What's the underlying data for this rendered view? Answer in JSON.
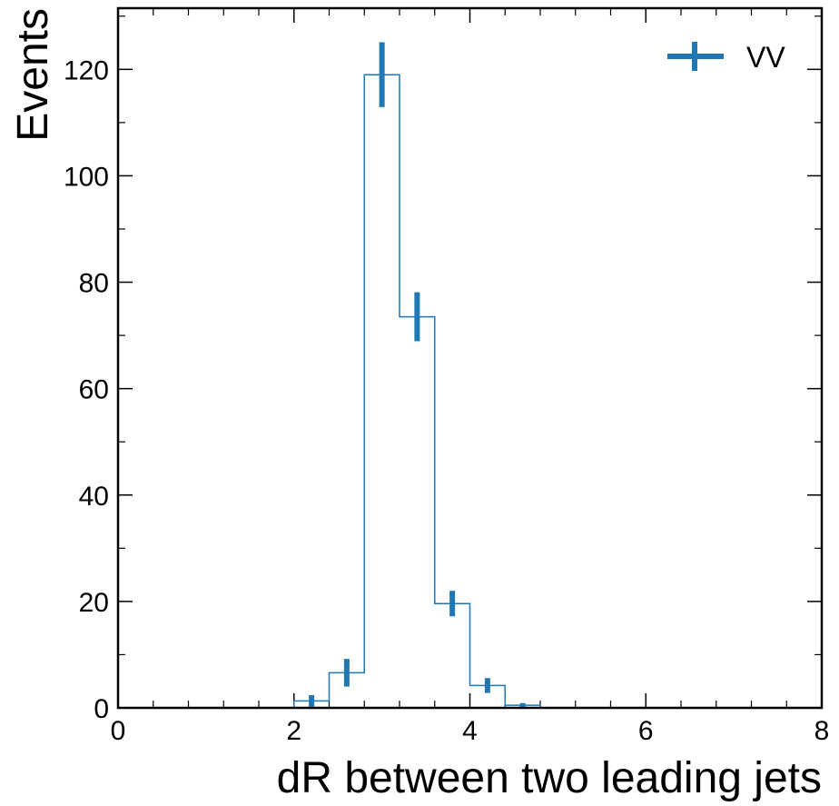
{
  "chart_data": {
    "type": "histogram",
    "xlabel": "dR between two leading jets",
    "ylabel": "Events",
    "xlim": [
      0,
      8
    ],
    "ylim": [
      0,
      131.5
    ],
    "xticks": [
      0,
      2,
      4,
      6,
      8
    ],
    "yticks": [
      0,
      20,
      40,
      60,
      80,
      100,
      120
    ],
    "xtick_labels": [
      "0",
      "2",
      "4",
      "6",
      "8"
    ],
    "ytick_labels": [
      "0",
      "20",
      "40",
      "60",
      "80",
      "100",
      "120"
    ],
    "x_minor_step": 0.4,
    "y_minor_step": 10,
    "legend_position": "top-right",
    "series": [
      {
        "name": "VV",
        "color": "#1f77b4",
        "bin_edges": [
          2.0,
          2.4,
          2.8,
          3.2,
          3.6,
          4.0,
          4.4,
          4.8
        ],
        "values": [
          1.3,
          6.6,
          119.0,
          73.5,
          19.6,
          4.2,
          0.5
        ],
        "errors": [
          1.1,
          2.6,
          6.1,
          4.6,
          2.4,
          1.4,
          0.4
        ]
      }
    ]
  }
}
